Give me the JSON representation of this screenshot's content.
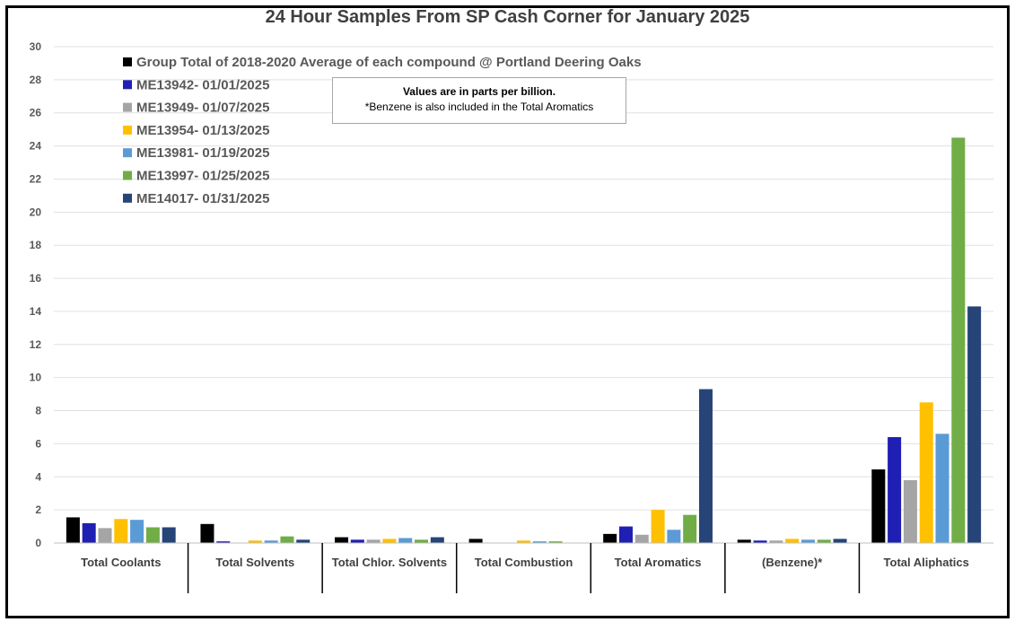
{
  "chart_data": {
    "type": "bar",
    "title": "24 Hour Samples From SP Cash Corner for January 2025",
    "xlabel": "",
    "ylabel": "",
    "ylim": [
      0,
      30
    ],
    "yticks": [
      0,
      2,
      4,
      6,
      8,
      10,
      12,
      14,
      16,
      18,
      20,
      22,
      24,
      26,
      28,
      30
    ],
    "grid": true,
    "legend_position": "top-left",
    "categories": [
      "Total Coolants",
      "Total Solvents",
      "Total Chlor. Solvents",
      "Total Combustion",
      "Total Aromatics",
      "(Benzene)*",
      "Total Aliphatics"
    ],
    "series": [
      {
        "name": "Group Total of 2018-2020 Average of each compound @ Portland Deering Oaks",
        "color": "#000000",
        "values": [
          1.55,
          1.15,
          0.35,
          0.25,
          0.55,
          0.2,
          4.45
        ]
      },
      {
        "name": "ME13942- 01/01/2025",
        "color": "#1f1fb4",
        "values": [
          1.2,
          0.1,
          0.2,
          0.0,
          1.0,
          0.15,
          6.4
        ]
      },
      {
        "name": "ME13949- 01/07/2025",
        "color": "#a5a5a5",
        "values": [
          0.9,
          0.0,
          0.2,
          0.0,
          0.5,
          0.15,
          3.8
        ]
      },
      {
        "name": "ME13954- 01/13/2025",
        "color": "#ffc000",
        "values": [
          1.45,
          0.15,
          0.25,
          0.15,
          2.0,
          0.25,
          8.5
        ]
      },
      {
        "name": "ME13981- 01/19/2025",
        "color": "#5b9bd5",
        "values": [
          1.4,
          0.15,
          0.3,
          0.1,
          0.8,
          0.2,
          6.6
        ]
      },
      {
        "name": "ME13997- 01/25/2025",
        "color": "#70ad47",
        "values": [
          0.95,
          0.4,
          0.2,
          0.1,
          1.7,
          0.2,
          24.5
        ]
      },
      {
        "name": "ME14017- 01/31/2025",
        "color": "#264478",
        "values": [
          0.95,
          0.2,
          0.35,
          0.0,
          9.3,
          0.25,
          14.3
        ]
      }
    ],
    "annotation": {
      "line1": "Values are in parts per billion.",
      "line2": "*Benzene is also included in the Total Aromatics"
    }
  }
}
